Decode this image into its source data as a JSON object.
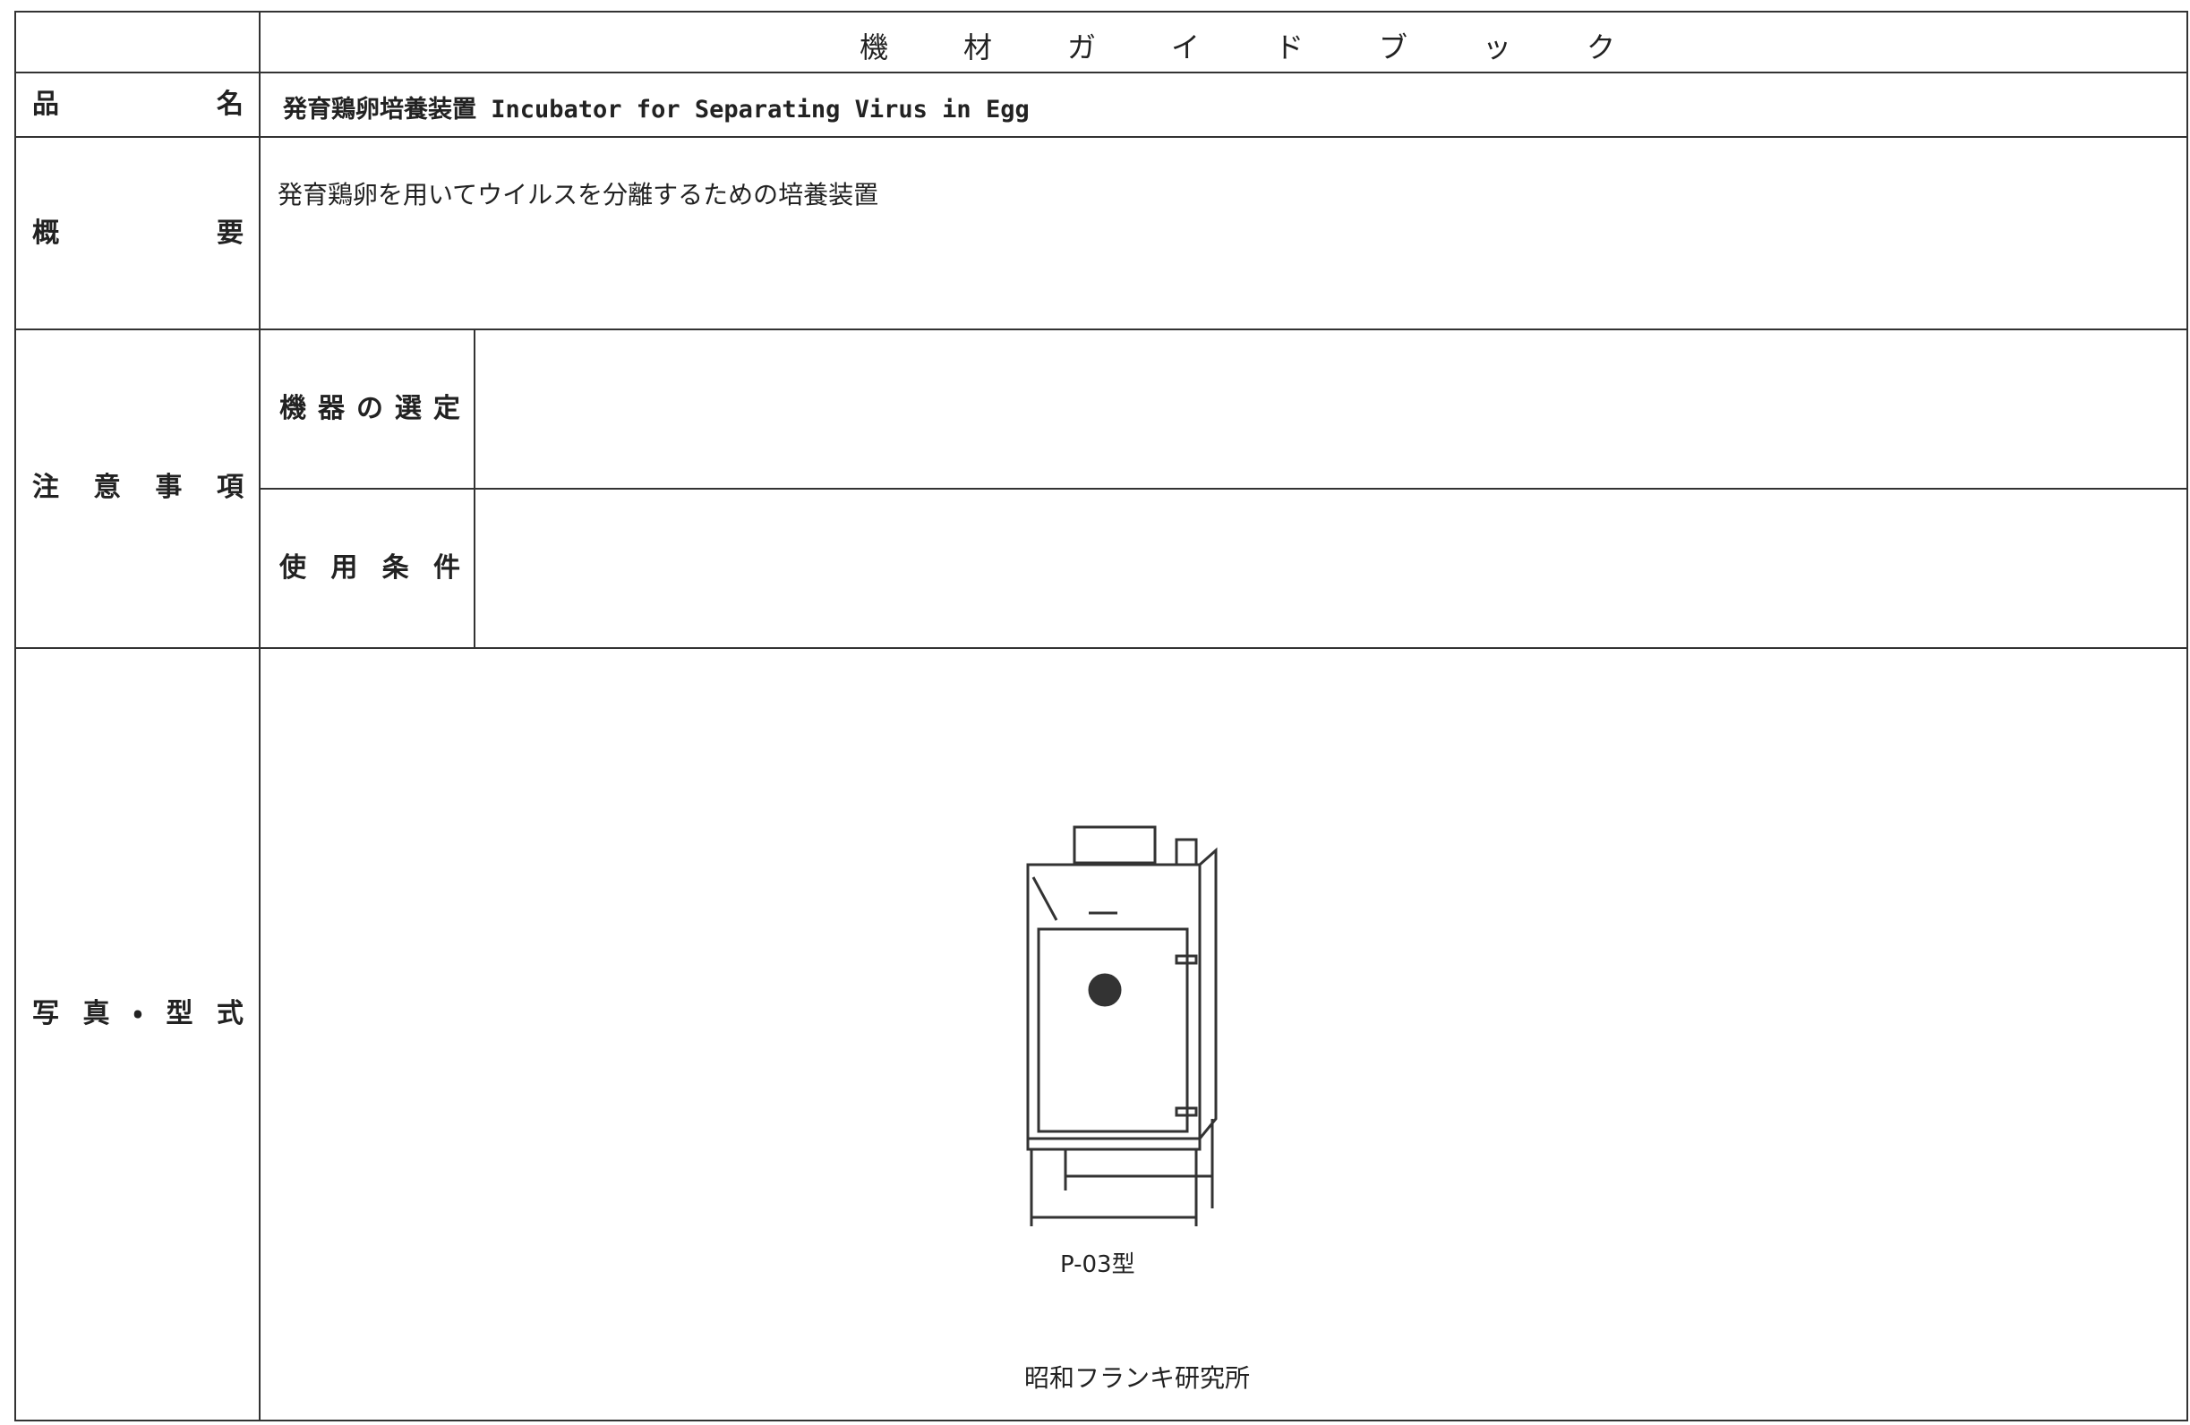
{
  "header": {
    "title": "機材ガイドブック"
  },
  "product_name": {
    "label": "品名",
    "value": "発育鶏卵培養装置 Incubator for Separating Virus in Egg"
  },
  "overview": {
    "label": "概要",
    "value": "発育鶏卵を用いてウイルスを分離するための培養装置"
  },
  "notes": {
    "label": "注意事項",
    "items": [
      {
        "label": "機器の選定"
      },
      {
        "label": "使用条件"
      }
    ]
  },
  "photo": {
    "label": "写真・型式",
    "model": "P-03型",
    "maker": "昭和フランキ研究所"
  }
}
